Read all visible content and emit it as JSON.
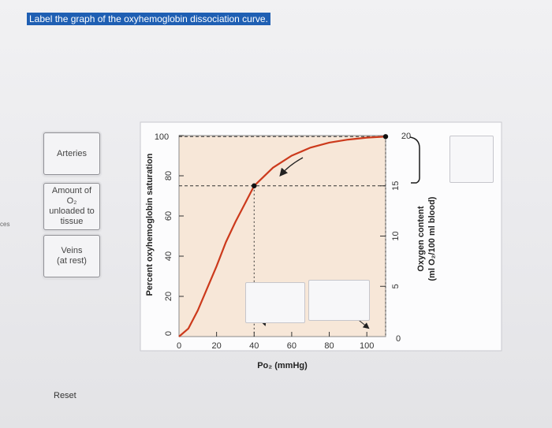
{
  "header": {
    "title": "Label the graph of the oxyhemoglobin dissociation curve."
  },
  "edge_text": "ces",
  "label_tiles": {
    "arteries": "Arteries",
    "amount": [
      "Amount of",
      "O₂",
      "unloaded to",
      "tissue"
    ],
    "veins": [
      "Veins",
      "(at rest)"
    ]
  },
  "reset_label": "Reset",
  "chart_data": {
    "type": "line",
    "xlabel": "Po₂ (mmHg)",
    "ylabel": "Percent oxyhemoglobin saturation",
    "y2label_line1": "Oxygen content",
    "y2label_line2": "(ml O₂/100 ml blood)",
    "x_ticks": [
      0,
      20,
      40,
      60,
      80,
      100
    ],
    "y_ticks": [
      0,
      20,
      40,
      60,
      80,
      100
    ],
    "y2_ticks": [
      0,
      5,
      10,
      15,
      20
    ],
    "xlim": [
      0,
      110
    ],
    "ylim": [
      0,
      100
    ],
    "y2lim": [
      0,
      20
    ],
    "series": [
      {
        "x": [
          0,
          5,
          10,
          15,
          20,
          25,
          30,
          35,
          40,
          50,
          60,
          70,
          80,
          90,
          100,
          110
        ],
        "y": [
          0,
          4,
          13,
          24,
          35,
          47,
          57,
          66,
          75,
          84,
          90,
          94,
          96.5,
          98,
          99,
          99.5
        ]
      }
    ],
    "points": [
      {
        "x": 40,
        "y": 75
      },
      {
        "x": 110,
        "y": 99.5
      }
    ],
    "colors": {
      "curve": "#cc3a1c",
      "plot_bg": "#f7e7d8",
      "bracket": "#1a1a1a"
    }
  }
}
